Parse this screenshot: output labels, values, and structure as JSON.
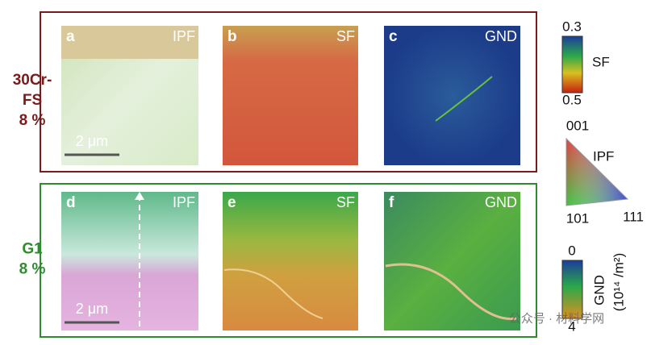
{
  "rows": [
    {
      "label_lines": [
        "30Cr-",
        "FS"
      ],
      "strain": "8 %",
      "panels": [
        {
          "letter": "a",
          "map": "IPF",
          "scale_bar": "2 μm"
        },
        {
          "letter": "b",
          "map": "SF"
        },
        {
          "letter": "c",
          "map": "GND"
        }
      ]
    },
    {
      "label_lines": [
        "G1"
      ],
      "strain": "8 %",
      "panels": [
        {
          "letter": "d",
          "map": "IPF",
          "scale_bar": "2 μm"
        },
        {
          "letter": "e",
          "map": "SF"
        },
        {
          "letter": "f",
          "map": "GND"
        }
      ]
    }
  ],
  "legends": {
    "sf": {
      "title": "SF",
      "top": "0.3",
      "bottom": "0.5"
    },
    "ipf": {
      "title": "IPF",
      "top": "001",
      "left": "101",
      "right": "111"
    },
    "gnd": {
      "title": "GND",
      "unit": "(10¹⁴ /m²)",
      "top": "0",
      "bottom": "4"
    }
  },
  "watermark": "公众号 · 材料学网"
}
